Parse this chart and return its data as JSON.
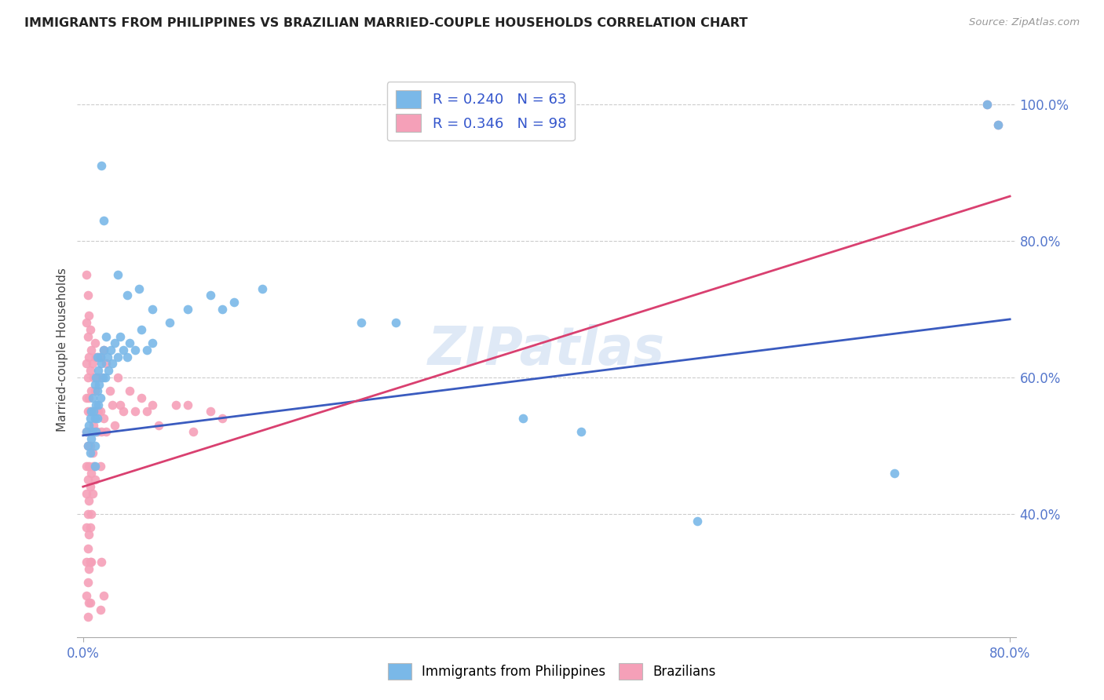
{
  "title": "IMMIGRANTS FROM PHILIPPINES VS BRAZILIAN MARRIED-COUPLE HOUSEHOLDS CORRELATION CHART",
  "source": "Source: ZipAtlas.com",
  "ylabel": "Married-couple Households",
  "blue_color": "#7ab8e8",
  "pink_color": "#f5a0b8",
  "blue_line_color": "#3a5bbf",
  "pink_line_color": "#d94070",
  "watermark": "ZIPatlas",
  "xlim": [
    0.0,
    0.8
  ],
  "ylim": [
    0.22,
    1.06
  ],
  "blue_trend": [
    0.0,
    0.515,
    0.8,
    0.685
  ],
  "pink_trend": [
    0.0,
    0.44,
    0.8,
    0.865
  ],
  "right_ytick_vals": [
    0.4,
    0.6,
    0.8,
    1.0
  ],
  "right_ytick_labels": [
    "40.0%",
    "60.0%",
    "80.0%",
    "100.0%"
  ],
  "blue_scatter": [
    [
      0.003,
      0.52
    ],
    [
      0.004,
      0.5
    ],
    [
      0.005,
      0.53
    ],
    [
      0.006,
      0.54
    ],
    [
      0.006,
      0.49
    ],
    [
      0.007,
      0.55
    ],
    [
      0.007,
      0.51
    ],
    [
      0.008,
      0.57
    ],
    [
      0.008,
      0.52
    ],
    [
      0.009,
      0.55
    ],
    [
      0.01,
      0.59
    ],
    [
      0.01,
      0.54
    ],
    [
      0.01,
      0.5
    ],
    [
      0.01,
      0.47
    ],
    [
      0.011,
      0.6
    ],
    [
      0.011,
      0.56
    ],
    [
      0.011,
      0.52
    ],
    [
      0.012,
      0.63
    ],
    [
      0.012,
      0.58
    ],
    [
      0.012,
      0.54
    ],
    [
      0.013,
      0.61
    ],
    [
      0.013,
      0.56
    ],
    [
      0.014,
      0.59
    ],
    [
      0.015,
      0.63
    ],
    [
      0.015,
      0.57
    ],
    [
      0.016,
      0.62
    ],
    [
      0.017,
      0.6
    ],
    [
      0.018,
      0.64
    ],
    [
      0.019,
      0.6
    ],
    [
      0.02,
      0.66
    ],
    [
      0.021,
      0.63
    ],
    [
      0.022,
      0.61
    ],
    [
      0.024,
      0.64
    ],
    [
      0.025,
      0.62
    ],
    [
      0.027,
      0.65
    ],
    [
      0.03,
      0.63
    ],
    [
      0.032,
      0.66
    ],
    [
      0.035,
      0.64
    ],
    [
      0.038,
      0.63
    ],
    [
      0.04,
      0.65
    ],
    [
      0.045,
      0.64
    ],
    [
      0.05,
      0.67
    ],
    [
      0.055,
      0.64
    ],
    [
      0.06,
      0.65
    ],
    [
      0.018,
      0.83
    ],
    [
      0.03,
      0.75
    ],
    [
      0.038,
      0.72
    ],
    [
      0.048,
      0.73
    ],
    [
      0.06,
      0.7
    ],
    [
      0.075,
      0.68
    ],
    [
      0.09,
      0.7
    ],
    [
      0.016,
      0.91
    ],
    [
      0.11,
      0.72
    ],
    [
      0.12,
      0.7
    ],
    [
      0.13,
      0.71
    ],
    [
      0.155,
      0.73
    ],
    [
      0.24,
      0.68
    ],
    [
      0.27,
      0.68
    ],
    [
      0.38,
      0.54
    ],
    [
      0.43,
      0.52
    ],
    [
      0.53,
      0.39
    ],
    [
      0.7,
      0.46
    ],
    [
      0.78,
      1.0
    ],
    [
      0.79,
      0.97
    ]
  ],
  "pink_scatter": [
    [
      0.003,
      0.75
    ],
    [
      0.003,
      0.68
    ],
    [
      0.003,
      0.62
    ],
    [
      0.003,
      0.57
    ],
    [
      0.003,
      0.52
    ],
    [
      0.003,
      0.47
    ],
    [
      0.003,
      0.43
    ],
    [
      0.003,
      0.38
    ],
    [
      0.003,
      0.33
    ],
    [
      0.003,
      0.28
    ],
    [
      0.004,
      0.72
    ],
    [
      0.004,
      0.66
    ],
    [
      0.004,
      0.6
    ],
    [
      0.004,
      0.55
    ],
    [
      0.004,
      0.5
    ],
    [
      0.004,
      0.45
    ],
    [
      0.004,
      0.4
    ],
    [
      0.004,
      0.35
    ],
    [
      0.004,
      0.3
    ],
    [
      0.004,
      0.25
    ],
    [
      0.005,
      0.69
    ],
    [
      0.005,
      0.63
    ],
    [
      0.005,
      0.57
    ],
    [
      0.005,
      0.52
    ],
    [
      0.005,
      0.47
    ],
    [
      0.005,
      0.42
    ],
    [
      0.005,
      0.37
    ],
    [
      0.005,
      0.32
    ],
    [
      0.005,
      0.27
    ],
    [
      0.006,
      0.67
    ],
    [
      0.006,
      0.61
    ],
    [
      0.006,
      0.55
    ],
    [
      0.006,
      0.5
    ],
    [
      0.006,
      0.44
    ],
    [
      0.006,
      0.38
    ],
    [
      0.006,
      0.33
    ],
    [
      0.006,
      0.27
    ],
    [
      0.007,
      0.64
    ],
    [
      0.007,
      0.58
    ],
    [
      0.007,
      0.52
    ],
    [
      0.007,
      0.46
    ],
    [
      0.007,
      0.4
    ],
    [
      0.007,
      0.33
    ],
    [
      0.008,
      0.62
    ],
    [
      0.008,
      0.55
    ],
    [
      0.008,
      0.49
    ],
    [
      0.008,
      0.43
    ],
    [
      0.009,
      0.6
    ],
    [
      0.009,
      0.53
    ],
    [
      0.009,
      0.47
    ],
    [
      0.01,
      0.65
    ],
    [
      0.01,
      0.58
    ],
    [
      0.01,
      0.52
    ],
    [
      0.01,
      0.45
    ],
    [
      0.011,
      0.63
    ],
    [
      0.011,
      0.55
    ],
    [
      0.012,
      0.6
    ],
    [
      0.012,
      0.52
    ],
    [
      0.013,
      0.63
    ],
    [
      0.013,
      0.55
    ],
    [
      0.014,
      0.6
    ],
    [
      0.015,
      0.63
    ],
    [
      0.015,
      0.55
    ],
    [
      0.015,
      0.47
    ],
    [
      0.016,
      0.6
    ],
    [
      0.016,
      0.52
    ],
    [
      0.016,
      0.33
    ],
    [
      0.018,
      0.64
    ],
    [
      0.018,
      0.54
    ],
    [
      0.02,
      0.62
    ],
    [
      0.02,
      0.52
    ],
    [
      0.023,
      0.58
    ],
    [
      0.025,
      0.56
    ],
    [
      0.027,
      0.53
    ],
    [
      0.03,
      0.6
    ],
    [
      0.032,
      0.56
    ],
    [
      0.035,
      0.55
    ],
    [
      0.04,
      0.58
    ],
    [
      0.045,
      0.55
    ],
    [
      0.05,
      0.57
    ],
    [
      0.055,
      0.55
    ],
    [
      0.06,
      0.56
    ],
    [
      0.065,
      0.53
    ],
    [
      0.08,
      0.56
    ],
    [
      0.09,
      0.56
    ],
    [
      0.095,
      0.52
    ],
    [
      0.11,
      0.55
    ],
    [
      0.12,
      0.54
    ],
    [
      0.015,
      0.26
    ],
    [
      0.018,
      0.28
    ],
    [
      0.78,
      1.0
    ],
    [
      0.79,
      0.97
    ]
  ]
}
